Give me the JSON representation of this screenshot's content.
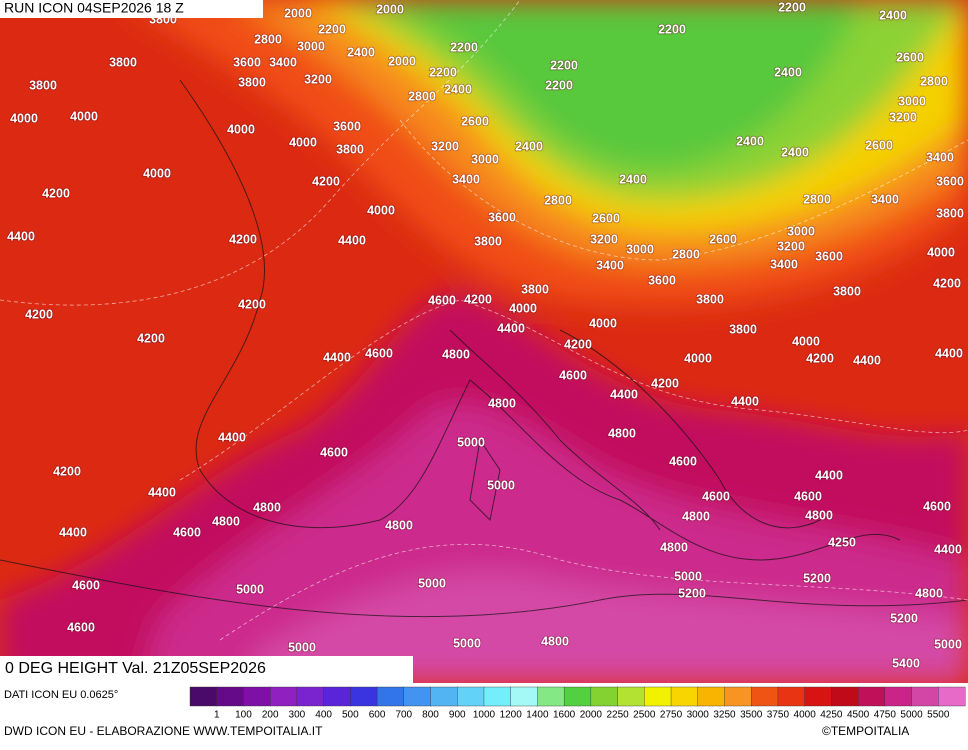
{
  "header": {
    "run": "RUN ICON 04SEP2026 18 Z",
    "field": "0 DEG HEIGHT Val. 21Z05SEP2026"
  },
  "footer": {
    "source": "DATI ICON EU 0.0625°",
    "credit": "DWD ICON EU - ELABORAZIONE WWW.TEMPOITALIA.IT",
    "copyright": "©TEMPOITALIA"
  },
  "colorbar": {
    "labels": [
      1,
      100,
      200,
      300,
      400,
      500,
      600,
      700,
      800,
      900,
      1000,
      1200,
      1400,
      1600,
      2000,
      2250,
      2500,
      2750,
      3000,
      3250,
      3500,
      3750,
      4000,
      4250,
      4500,
      4750,
      5000,
      5500
    ],
    "colors": [
      "#4a0a6a",
      "#650a88",
      "#7e10a6",
      "#9020c0",
      "#7a24d0",
      "#5a24d8",
      "#3a34e0",
      "#2254e2",
      "#3274ea",
      "#4294f0",
      "#52b4f2",
      "#62d2f8",
      "#74eef8",
      "#a4f8f6",
      "#84e884",
      "#52d042",
      "#84d232",
      "#b4e232",
      "#f2f200",
      "#f8d400",
      "#f8b400",
      "#f89422",
      "#f87424",
      "#f05414",
      "#e83412",
      "#d81412",
      "#c00a1a",
      "#c0105a",
      "#ca2488",
      "#d446a6",
      "#e86ac8"
    ]
  },
  "contour_labels": [
    2000,
    2000,
    2200,
    2400,
    3800,
    2800,
    3000,
    2200,
    2400,
    2000,
    2200,
    2200,
    2200,
    2200,
    2400,
    2200,
    2800,
    2400,
    2600,
    2800,
    3000,
    3200,
    3600,
    3400,
    3800,
    3200,
    3800,
    3800,
    4000,
    4000,
    4000,
    4000,
    3600,
    3800,
    3200,
    2600,
    3000,
    2400,
    2400,
    2400,
    2600,
    3400,
    3600,
    3400,
    4200,
    4000,
    4200,
    2400,
    2800,
    2800,
    3400,
    3800,
    4400,
    4200,
    4400,
    4000,
    3600,
    3800,
    2600,
    3200,
    3000,
    2600,
    3000,
    3200,
    3400,
    3600,
    4000,
    2800,
    3400,
    4200,
    3600,
    3800,
    3800,
    3800,
    4200,
    4600,
    4200,
    4000,
    4200,
    4000,
    4400,
    3800,
    4000,
    4200,
    4200,
    4400,
    4600,
    4800,
    4000,
    4200,
    4400,
    4400,
    4600,
    4200,
    4400,
    4800,
    4400,
    4800,
    4400,
    5000,
    4600,
    4600,
    4400,
    4200,
    5000,
    4400,
    4600,
    4600,
    4800,
    4800,
    4600,
    4800,
    4600,
    4800,
    4400,
    4800,
    4250,
    4800,
    4400,
    5000,
    5000,
    4600,
    5000,
    5200,
    5200,
    4800,
    4600,
    5200,
    5000,
    4800,
    5000,
    5000,
    5400
  ]
}
